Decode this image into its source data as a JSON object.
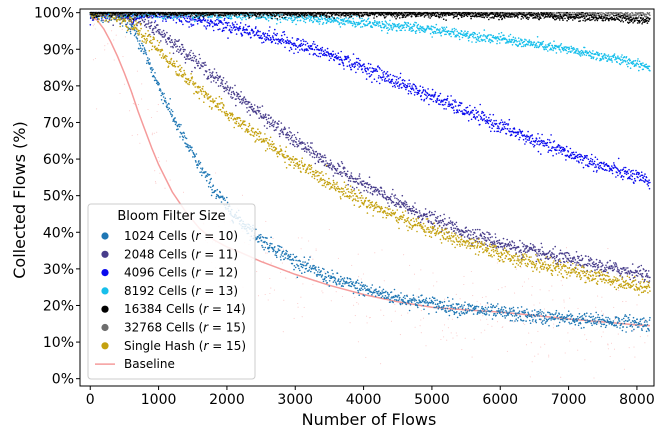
{
  "chart_data": {
    "type": "scatter",
    "xlabel": "Number of Flows",
    "ylabel": "Collected Flows (%)",
    "xlim": [
      -150,
      8250
    ],
    "ylim": [
      -2,
      101
    ],
    "x_ticks": [
      0,
      1000,
      2000,
      3000,
      4000,
      5000,
      6000,
      7000,
      8000
    ],
    "y_ticks": [
      0,
      10,
      20,
      30,
      40,
      50,
      60,
      70,
      80,
      90,
      100
    ],
    "y_tick_labels": [
      "0%",
      "10%",
      "20%",
      "30%",
      "40%",
      "50%",
      "60%",
      "70%",
      "80%",
      "90%",
      "100%"
    ],
    "grid": false,
    "legend": {
      "title": "Bloom Filter Size",
      "placement": "lower-left"
    },
    "series": [
      {
        "name": "1024 Cells (r = 10)",
        "name_main": "1024 Cells (",
        "name_r": "r",
        "name_tail": " = 10)",
        "kind": "scatter",
        "color": "#1f77b4",
        "x": [
          0,
          200,
          400,
          600,
          800,
          1000,
          1200,
          1400,
          1600,
          1800,
          2000,
          2200,
          2500,
          3000,
          3500,
          4000,
          4500,
          5000,
          5500,
          6000,
          6500,
          7000,
          7500,
          8000,
          8192
        ],
        "values": [
          100,
          100,
          99.5,
          96,
          89,
          80,
          72,
          64.5,
          58,
          52,
          47,
          43,
          38,
          32,
          27.5,
          24.5,
          22,
          20.5,
          19,
          18,
          17,
          16.3,
          15.7,
          15.2,
          15
        ]
      },
      {
        "name": "2048 Cells (r = 11)",
        "name_main": "2048 Cells (",
        "name_r": "r",
        "name_tail": " = 11)",
        "kind": "scatter",
        "color": "#483d8b",
        "x": [
          0,
          400,
          800,
          1000,
          1200,
          1500,
          2000,
          2500,
          3000,
          3500,
          4000,
          4500,
          5000,
          5500,
          6000,
          6500,
          7000,
          7500,
          8000,
          8192
        ],
        "values": [
          100,
          99.5,
          97.5,
          95,
          92,
          87.5,
          79.5,
          72,
          65,
          58.5,
          53,
          48,
          43.5,
          40,
          37,
          34.5,
          32.5,
          30.5,
          29,
          28
        ]
      },
      {
        "name": "4096 Cells (r = 12)",
        "name_main": "4096 Cells (",
        "name_r": "r",
        "name_tail": " = 12)",
        "kind": "scatter",
        "color": "#0a0aee",
        "x": [
          0,
          1000,
          1500,
          2000,
          2500,
          3000,
          3500,
          4000,
          4500,
          5000,
          5500,
          6000,
          6500,
          7000,
          7500,
          8000,
          8192
        ],
        "values": [
          100,
          99.6,
          98.5,
          96.5,
          94,
          91.5,
          88.5,
          85,
          81,
          77,
          73,
          69,
          65,
          61.5,
          58,
          55,
          53.5
        ]
      },
      {
        "name": "8192 Cells (r = 13)",
        "name_main": "8192 Cells (",
        "name_r": "r",
        "name_tail": " = 13)",
        "kind": "scatter",
        "color": "#17bfeb",
        "x": [
          0,
          2000,
          3000,
          4000,
          5000,
          6000,
          6500,
          7000,
          7500,
          8000,
          8192
        ],
        "values": [
          100,
          99.6,
          98.8,
          97.2,
          95.3,
          92.8,
          91.3,
          89.8,
          88,
          86.2,
          85
        ]
      },
      {
        "name": "16384 Cells (r = 14)",
        "name_main": "16384 Cells (",
        "name_r": "r",
        "name_tail": " = 14)",
        "kind": "scatter",
        "color": "#000000",
        "x": [
          0,
          3000,
          5000,
          6000,
          7000,
          7500,
          8000,
          8192
        ],
        "values": [
          100,
          99.9,
          99.6,
          99.3,
          98.9,
          98.6,
          98.2,
          97.8
        ]
      },
      {
        "name": "32768 Cells (r = 15)",
        "name_main": "32768 Cells (",
        "name_r": "r",
        "name_tail": " = 15)",
        "kind": "scatter",
        "color": "#6e6e6e",
        "x": [
          0,
          5000,
          7000,
          8192
        ],
        "values": [
          100,
          99.9,
          99.7,
          99.5
        ]
      },
      {
        "name": "Single Hash (r = 15)",
        "name_main": "Single Hash (",
        "name_r": "r",
        "name_tail": " = 15)",
        "kind": "scatter",
        "color": "#c4a10f",
        "x": [
          0,
          300,
          600,
          800,
          1000,
          1200,
          1500,
          2000,
          2500,
          3000,
          3500,
          4000,
          4500,
          5000,
          5500,
          6000,
          6500,
          7000,
          7500,
          8000,
          8192
        ],
        "values": [
          100,
          99.5,
          97,
          93.5,
          90,
          86,
          80.5,
          72.5,
          65.5,
          59,
          53.5,
          48.5,
          44,
          40.5,
          37,
          34,
          31.5,
          29.5,
          27.5,
          25.5,
          25
        ]
      },
      {
        "name": "Baseline",
        "kind": "line",
        "color": "#f59b9b",
        "x": [
          0,
          100,
          200,
          300,
          400,
          500,
          600,
          700,
          800,
          900,
          1000,
          1200,
          1400,
          1600,
          1800,
          2000,
          2200,
          2500,
          3000,
          3500,
          4000,
          4500,
          5000,
          5500,
          6000,
          6500,
          7000,
          7500,
          8000,
          8192
        ],
        "values": [
          99,
          98,
          95.5,
          92,
          88,
          83.5,
          78.5,
          73,
          68,
          63,
          58.5,
          51,
          45.5,
          41,
          38,
          36,
          34.5,
          32,
          28.5,
          25.5,
          23,
          21,
          19.5,
          18.8,
          18.2,
          17.3,
          16.3,
          15.5,
          14.7,
          14.5
        ]
      }
    ]
  }
}
